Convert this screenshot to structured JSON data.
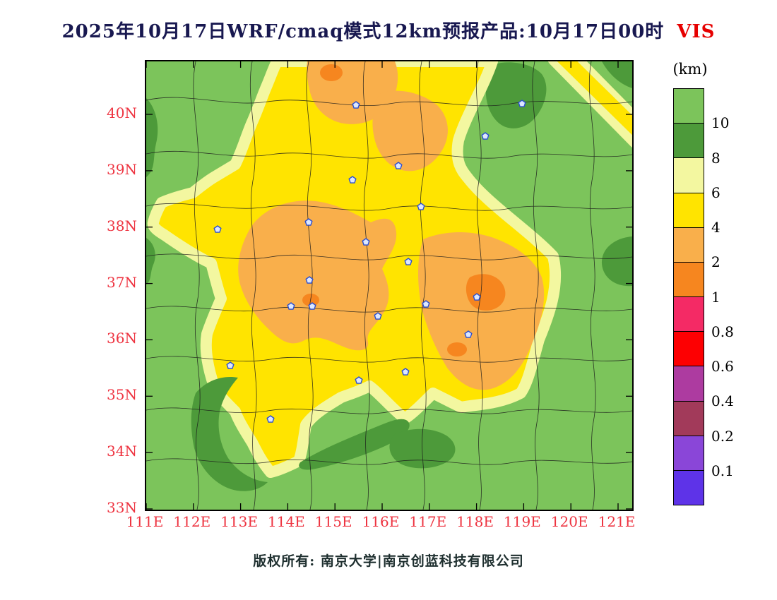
{
  "header": {
    "title": "2025年10月17日WRF/cmaq模式12km预报产品:10月17日00时",
    "variable": "VIS"
  },
  "legend": {
    "unit": "(km)",
    "labels": [
      "10",
      "8",
      "6",
      "4",
      "2",
      "1",
      "0.8",
      "0.6",
      "0.4",
      "0.2",
      "0.1"
    ],
    "colors": [
      "#7cc45b",
      "#4d9a3a",
      "#f3f7a0",
      "#ffe400",
      "#f9af4b",
      "#f6861f",
      "#f42a65",
      "#fd0002",
      "#ad3ba0",
      "#a23a5a",
      "#8a46d8",
      "#5e33e8"
    ]
  },
  "axes": {
    "lat_labels": [
      "40N",
      "39N",
      "38N",
      "37N",
      "36N",
      "35N",
      "34N",
      "33N"
    ],
    "lon_labels": [
      "111E",
      "112E",
      "113E",
      "114E",
      "115E",
      "116E",
      "117E",
      "118E",
      "119E",
      "120E",
      "121E"
    ]
  },
  "map": {
    "boundary_color": "#1b1b1b",
    "marker_fill": "#dde8ff",
    "marker_stroke": "#2b4fd0"
  },
  "colors": {
    "title": "#181850",
    "variable": "#e60000",
    "axis_label": "#ee3340",
    "footer": "#1e2f2f"
  },
  "footer": {
    "copyright": "版权所有: 南京大学|南京创蓝科技有限公司"
  }
}
